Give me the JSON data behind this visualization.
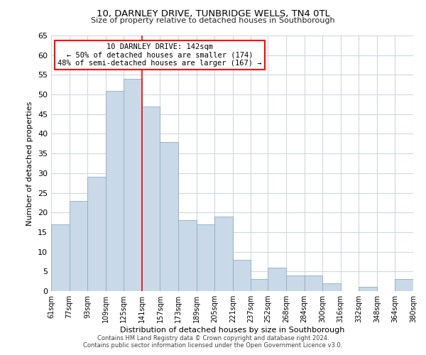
{
  "title": "10, DARNLEY DRIVE, TUNBRIDGE WELLS, TN4 0TL",
  "subtitle": "Size of property relative to detached houses in Southborough",
  "xlabel": "Distribution of detached houses by size in Southborough",
  "ylabel": "Number of detached properties",
  "footer_line1": "Contains HM Land Registry data © Crown copyright and database right 2024.",
  "footer_line2": "Contains public sector information licensed under the Open Government Licence v3.0.",
  "annotation_line1": "10 DARNLEY DRIVE: 142sqm",
  "annotation_line2": "← 50% of detached houses are smaller (174)",
  "annotation_line3": "48% of semi-detached houses are larger (167) →",
  "bar_color": "#c9d9e8",
  "bar_edge_color": "#8bafc8",
  "redline_x": 141,
  "bin_edges": [
    61,
    77,
    93,
    109,
    125,
    141,
    157,
    173,
    189,
    205,
    221,
    237,
    252,
    268,
    284,
    300,
    316,
    332,
    348,
    364,
    380
  ],
  "bin_labels": [
    "61sqm",
    "77sqm",
    "93sqm",
    "109sqm",
    "125sqm",
    "141sqm",
    "157sqm",
    "173sqm",
    "189sqm",
    "205sqm",
    "221sqm",
    "237sqm",
    "252sqm",
    "268sqm",
    "284sqm",
    "300sqm",
    "316sqm",
    "332sqm",
    "348sqm",
    "364sqm",
    "380sqm"
  ],
  "bar_heights": [
    17,
    23,
    29,
    51,
    54,
    47,
    38,
    18,
    17,
    19,
    8,
    3,
    6,
    4,
    4,
    2,
    0,
    1,
    0,
    3
  ],
  "ylim": [
    0,
    65
  ],
  "yticks": [
    0,
    5,
    10,
    15,
    20,
    25,
    30,
    35,
    40,
    45,
    50,
    55,
    60,
    65
  ],
  "background_color": "#ffffff",
  "grid_color": "#d0d8e0"
}
